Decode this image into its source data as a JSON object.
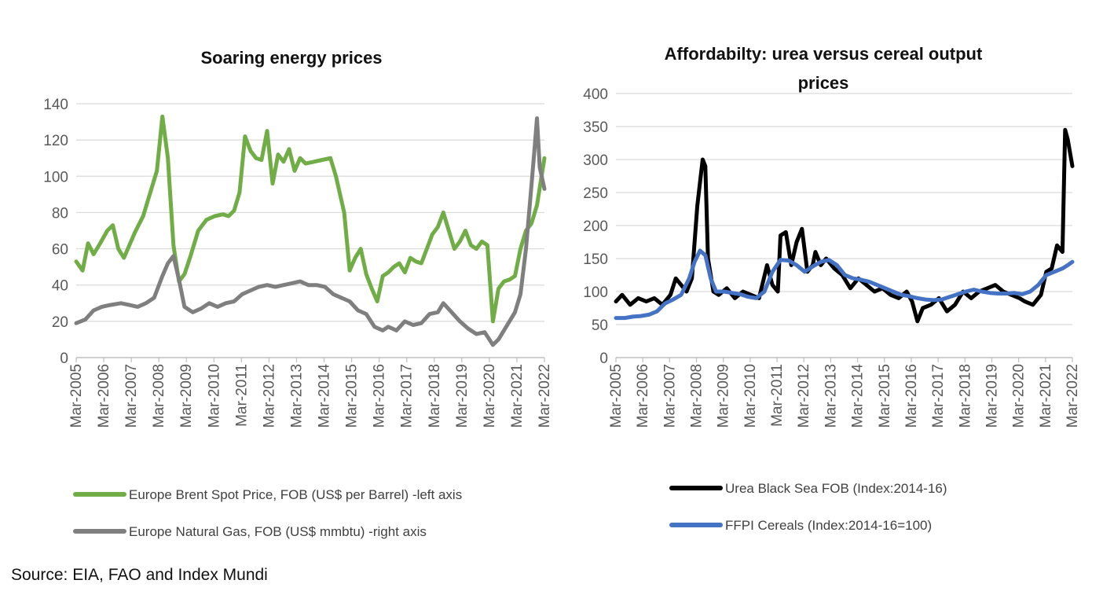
{
  "source": "Source: EIA, FAO and  Index Mundi",
  "chart_data": [
    {
      "type": "line",
      "title": "Soaring energy prices",
      "ylim": [
        0,
        140
      ],
      "yticks": [
        0,
        20,
        40,
        60,
        80,
        100,
        120,
        140
      ],
      "xlim": [
        2005.17,
        2022.17
      ],
      "xticks": [
        "Mar-2005",
        "Mar-2006",
        "Mar-2007",
        "Mar-2008",
        "Mar-2009",
        "Mar-2010",
        "Mar-2011",
        "Mar-2012",
        "Mar-2013",
        "Mar-2014",
        "Mar-2015",
        "Mar-2016",
        "Mar-2017",
        "Mar-2018",
        "Mar-2019",
        "Mar-2020",
        "Mar-2021",
        "Mar-2022"
      ],
      "series": [
        {
          "name": "Europe Brent Spot Price, FOB (US$ per Barrel) -left axis",
          "color": "#70AD47",
          "x": [
            2005.17,
            2005.4,
            2005.6,
            2005.8,
            2006.0,
            2006.3,
            2006.5,
            2006.7,
            2006.9,
            2007.1,
            2007.3,
            2007.6,
            2007.9,
            2008.1,
            2008.3,
            2008.5,
            2008.7,
            2008.9,
            2009.1,
            2009.3,
            2009.6,
            2009.9,
            2010.2,
            2010.5,
            2010.7,
            2010.9,
            2011.1,
            2011.3,
            2011.5,
            2011.7,
            2011.9,
            2012.1,
            2012.3,
            2012.5,
            2012.7,
            2012.9,
            2013.1,
            2013.3,
            2013.5,
            2013.8,
            2014.1,
            2014.4,
            2014.6,
            2014.9,
            2015.1,
            2015.3,
            2015.5,
            2015.7,
            2015.9,
            2016.1,
            2016.3,
            2016.5,
            2016.7,
            2016.9,
            2017.1,
            2017.3,
            2017.5,
            2017.7,
            2017.9,
            2018.1,
            2018.3,
            2018.5,
            2018.7,
            2018.9,
            2019.1,
            2019.3,
            2019.5,
            2019.7,
            2019.9,
            2020.1,
            2020.3,
            2020.5,
            2020.7,
            2020.9,
            2021.1,
            2021.3,
            2021.5,
            2021.7,
            2021.9,
            2022.17
          ],
          "y": [
            53,
            48,
            63,
            57,
            62,
            70,
            73,
            60,
            55,
            62,
            69,
            78,
            93,
            103,
            133,
            110,
            62,
            42,
            46,
            55,
            70,
            76,
            78,
            79,
            78,
            81,
            91,
            122,
            114,
            110,
            109,
            125,
            96,
            112,
            108,
            115,
            103,
            110,
            107,
            108,
            109,
            110,
            100,
            80,
            48,
            55,
            60,
            46,
            38,
            31,
            45,
            47,
            50,
            52,
            47,
            55,
            53,
            52,
            60,
            68,
            72,
            80,
            70,
            60,
            64,
            70,
            62,
            60,
            64,
            62,
            20,
            38,
            42,
            43,
            45,
            60,
            70,
            74,
            84,
            110
          ]
        },
        {
          "name": "Europe Natural Gas, FOB (US$ mmbtu) -right axis",
          "color": "#7F7F7F",
          "x": [
            2005.17,
            2005.5,
            2005.8,
            2006.1,
            2006.4,
            2006.8,
            2007.1,
            2007.4,
            2007.7,
            2008.0,
            2008.3,
            2008.5,
            2008.7,
            2008.9,
            2009.1,
            2009.4,
            2009.7,
            2010.0,
            2010.3,
            2010.6,
            2010.9,
            2011.2,
            2011.5,
            2011.8,
            2012.1,
            2012.4,
            2012.7,
            2013.0,
            2013.3,
            2013.6,
            2013.9,
            2014.2,
            2014.5,
            2014.8,
            2015.1,
            2015.4,
            2015.7,
            2016.0,
            2016.3,
            2016.5,
            2016.8,
            2017.1,
            2017.4,
            2017.7,
            2018.0,
            2018.3,
            2018.5,
            2018.8,
            2019.1,
            2019.4,
            2019.7,
            2020.0,
            2020.3,
            2020.5,
            2020.7,
            2020.9,
            2021.1,
            2021.3,
            2021.5,
            2021.7,
            2021.8,
            2021.9,
            2022.0,
            2022.17
          ],
          "y": [
            19,
            21,
            26,
            28,
            29,
            30,
            29,
            28,
            30,
            33,
            45,
            52,
            56,
            43,
            28,
            25,
            27,
            30,
            28,
            30,
            31,
            35,
            37,
            39,
            40,
            39,
            40,
            41,
            42,
            40,
            40,
            39,
            35,
            33,
            31,
            26,
            24,
            17,
            15,
            17,
            15,
            20,
            18,
            19,
            24,
            25,
            30,
            25,
            20,
            16,
            13,
            14,
            7,
            10,
            15,
            20,
            25,
            35,
            60,
            95,
            113,
            132,
            105,
            93
          ]
        },
        {
          "series_note": "right axis scale for gas line drawn against left-axis ticks as in the original"
        }
      ]
    },
    {
      "type": "line",
      "title_line1": "Affordabilty: urea versus cereal output",
      "title_line2": "prices",
      "ylim": [
        0,
        400
      ],
      "yticks": [
        0,
        50,
        100,
        150,
        200,
        250,
        300,
        350,
        400
      ],
      "xlim": [
        2005.17,
        2022.17
      ],
      "xticks": [
        "Mar-2005",
        "Mar-2006",
        "Mar-2007",
        "Mar-2008",
        "Mar-2009",
        "Mar-2010",
        "Mar-2011",
        "Mar-2012",
        "Mar-2013",
        "Mar-2014",
        "Mar-2015",
        "Mar-2016",
        "Mar-2017",
        "Mar-2018",
        "Mar-2019",
        "Mar-2020",
        "Mar-2021",
        "Mar-2022"
      ],
      "series": [
        {
          "name": "Urea Black Sea FOB (Index:2014-16)",
          "color": "#000000",
          "x": [
            2005.17,
            2005.4,
            2005.7,
            2006.0,
            2006.3,
            2006.6,
            2006.9,
            2007.2,
            2007.4,
            2007.6,
            2007.8,
            2008.0,
            2008.2,
            2008.4,
            2008.5,
            2008.6,
            2008.8,
            2009.0,
            2009.3,
            2009.6,
            2009.9,
            2010.2,
            2010.5,
            2010.8,
            2011.0,
            2011.2,
            2011.3,
            2011.5,
            2011.7,
            2011.9,
            2012.1,
            2012.3,
            2012.5,
            2012.6,
            2012.8,
            2013.0,
            2013.3,
            2013.6,
            2013.9,
            2014.2,
            2014.5,
            2014.8,
            2015.1,
            2015.4,
            2015.7,
            2016.0,
            2016.2,
            2016.4,
            2016.6,
            2016.9,
            2017.2,
            2017.5,
            2017.8,
            2018.1,
            2018.4,
            2018.7,
            2019.0,
            2019.3,
            2019.6,
            2019.9,
            2020.2,
            2020.4,
            2020.7,
            2021.0,
            2021.2,
            2021.4,
            2021.6,
            2021.8,
            2021.9,
            2022.0,
            2022.17
          ],
          "y": [
            85,
            95,
            80,
            90,
            85,
            90,
            80,
            95,
            120,
            110,
            100,
            120,
            230,
            300,
            290,
            150,
            100,
            95,
            105,
            90,
            100,
            95,
            90,
            140,
            110,
            100,
            185,
            190,
            140,
            175,
            195,
            130,
            140,
            160,
            140,
            150,
            135,
            125,
            105,
            120,
            110,
            100,
            105,
            95,
            90,
            100,
            85,
            55,
            75,
            80,
            90,
            70,
            80,
            100,
            90,
            100,
            105,
            110,
            100,
            95,
            90,
            85,
            80,
            95,
            130,
            135,
            170,
            160,
            345,
            330,
            290
          ]
        },
        {
          "name": "FFPI Cereals (Index:2014-16=100)",
          "color": "#4472C4",
          "x": [
            2005.17,
            2005.5,
            2005.8,
            2006.1,
            2006.4,
            2006.7,
            2007.0,
            2007.3,
            2007.6,
            2007.9,
            2008.1,
            2008.3,
            2008.5,
            2008.7,
            2008.9,
            2009.2,
            2009.5,
            2009.8,
            2010.1,
            2010.4,
            2010.7,
            2011.0,
            2011.3,
            2011.6,
            2011.9,
            2012.2,
            2012.5,
            2012.8,
            2013.1,
            2013.4,
            2013.7,
            2014.0,
            2014.3,
            2014.6,
            2014.9,
            2015.2,
            2015.5,
            2015.8,
            2016.1,
            2016.4,
            2016.7,
            2017.0,
            2017.3,
            2017.6,
            2017.9,
            2018.2,
            2018.5,
            2018.8,
            2019.1,
            2019.4,
            2019.7,
            2020.0,
            2020.3,
            2020.6,
            2020.9,
            2021.2,
            2021.5,
            2021.8,
            2022.0,
            2022.17
          ],
          "y": [
            60,
            60,
            62,
            63,
            65,
            70,
            82,
            88,
            95,
            120,
            145,
            162,
            155,
            120,
            100,
            100,
            98,
            96,
            92,
            90,
            100,
            130,
            148,
            147,
            140,
            130,
            138,
            145,
            148,
            140,
            125,
            120,
            118,
            115,
            110,
            105,
            100,
            95,
            93,
            90,
            88,
            87,
            88,
            92,
            96,
            100,
            103,
            100,
            98,
            97,
            97,
            98,
            96,
            100,
            110,
            125,
            130,
            135,
            140,
            145
          ]
        }
      ]
    }
  ]
}
